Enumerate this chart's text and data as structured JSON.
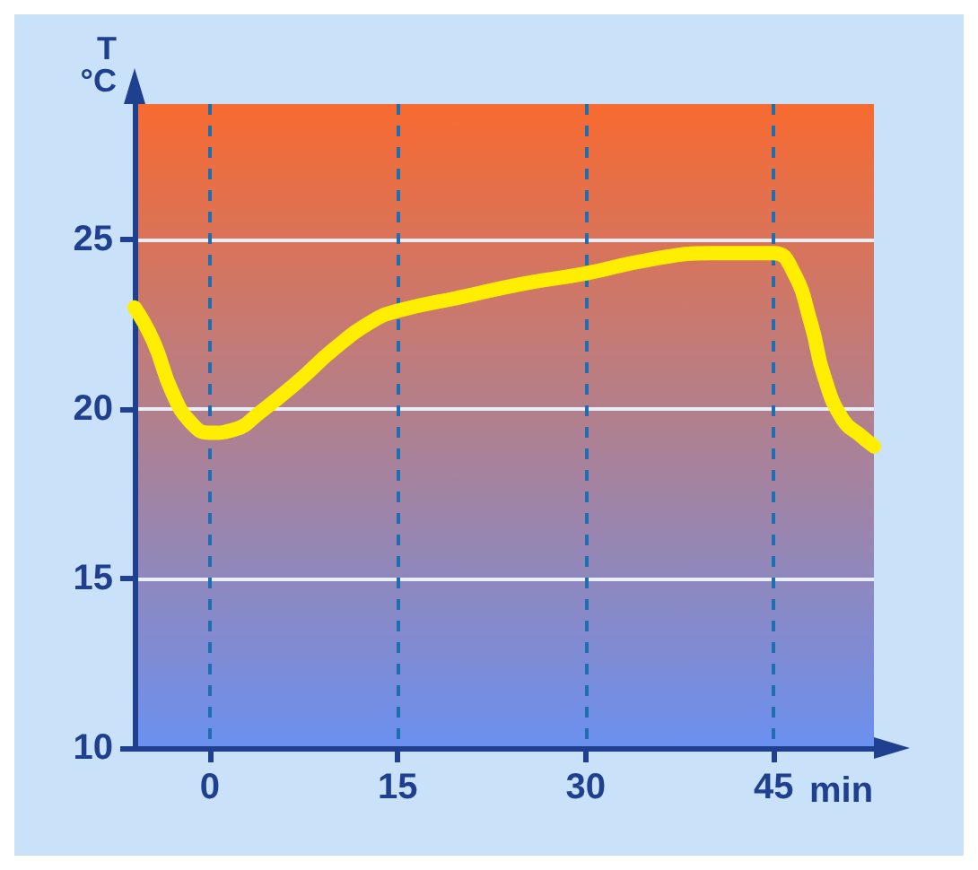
{
  "chart_data": {
    "type": "line",
    "xlabel": "min",
    "ylabel": "T\n°C",
    "x": [
      -6,
      -4.5,
      -3,
      -1.5,
      0,
      2,
      4,
      7,
      10,
      13,
      15,
      20,
      25,
      30,
      35,
      40,
      45,
      46.5,
      48,
      49,
      50.5,
      52,
      53
    ],
    "series": [
      {
        "color": "#ffee00",
        "values": [
          23,
          22,
          20.5,
          19.6,
          19.3,
          19.4,
          19.9,
          20.8,
          21.8,
          22.6,
          22.9,
          23.3,
          23.7,
          24,
          24.4,
          24.6,
          24.6,
          24.1,
          22.5,
          21,
          19.7,
          19.2,
          18.9
        ]
      }
    ],
    "xlim": [
      -6,
      53
    ],
    "xticks": [
      0,
      15,
      30,
      45
    ],
    "ylim": [
      10,
      29
    ],
    "yticks": [
      10,
      15,
      20,
      25
    ],
    "grid": true,
    "line_style": "solid"
  }
}
